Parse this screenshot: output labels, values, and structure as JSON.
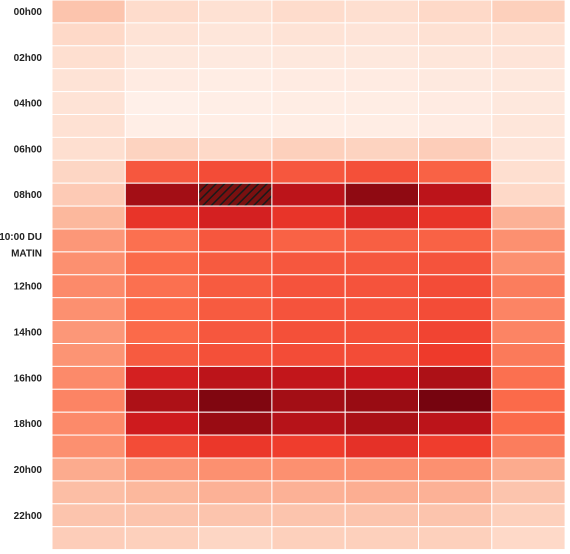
{
  "chart_data": {
    "type": "heatmap",
    "y_labels": [
      "00h00",
      "",
      "02h00",
      "",
      "04h00",
      "",
      "06h00",
      "",
      "08h00",
      "",
      "10:00 DU MATIN",
      "",
      "12h00",
      "",
      "14h00",
      "",
      "16h00",
      "",
      "18h00",
      "",
      "20h00",
      "",
      "22h00",
      ""
    ],
    "y_label_tenth_line1": "10:00 DU",
    "y_label_tenth_line2": "MATIN",
    "columns": 7,
    "color_scale": {
      "low": "#fff5f0",
      "high": "#67000d"
    },
    "value_range": [
      0,
      1
    ],
    "values": [
      [
        0.22,
        0.14,
        0.12,
        0.14,
        0.13,
        0.15,
        0.18
      ],
      [
        0.15,
        0.11,
        0.09,
        0.11,
        0.1,
        0.12,
        0.12
      ],
      [
        0.13,
        0.08,
        0.07,
        0.08,
        0.08,
        0.09,
        0.1
      ],
      [
        0.11,
        0.06,
        0.05,
        0.06,
        0.06,
        0.07,
        0.08
      ],
      [
        0.11,
        0.03,
        0.04,
        0.05,
        0.05,
        0.06,
        0.08
      ],
      [
        0.12,
        0.04,
        0.04,
        0.05,
        0.05,
        0.06,
        0.09
      ],
      [
        0.13,
        0.17,
        0.15,
        0.18,
        0.17,
        0.19,
        0.1
      ],
      [
        0.16,
        0.55,
        0.58,
        0.55,
        0.57,
        0.52,
        0.13
      ],
      [
        0.2,
        0.88,
        null,
        0.8,
        0.92,
        0.8,
        0.15
      ],
      [
        0.26,
        0.65,
        0.72,
        0.65,
        0.7,
        0.65,
        0.28
      ],
      [
        0.36,
        0.48,
        0.55,
        0.52,
        0.53,
        0.52,
        0.38
      ],
      [
        0.38,
        0.5,
        0.54,
        0.55,
        0.55,
        0.56,
        0.38
      ],
      [
        0.4,
        0.48,
        0.54,
        0.56,
        0.56,
        0.58,
        0.44
      ],
      [
        0.38,
        0.5,
        0.54,
        0.56,
        0.56,
        0.58,
        0.42
      ],
      [
        0.36,
        0.5,
        0.55,
        0.57,
        0.57,
        0.6,
        0.42
      ],
      [
        0.37,
        0.54,
        0.57,
        0.58,
        0.58,
        0.63,
        0.45
      ],
      [
        0.4,
        0.72,
        0.8,
        0.78,
        0.76,
        0.85,
        0.48
      ],
      [
        0.42,
        0.85,
        0.95,
        0.88,
        0.9,
        0.97,
        0.5
      ],
      [
        0.4,
        0.74,
        0.9,
        0.82,
        0.86,
        0.8,
        0.5
      ],
      [
        0.38,
        0.58,
        0.64,
        0.62,
        0.66,
        0.62,
        0.44
      ],
      [
        0.3,
        0.36,
        0.38,
        0.38,
        0.38,
        0.38,
        0.3
      ],
      [
        0.24,
        0.26,
        0.28,
        0.28,
        0.29,
        0.28,
        0.22
      ],
      [
        0.22,
        0.22,
        0.22,
        0.22,
        0.22,
        0.22,
        0.18
      ],
      [
        0.19,
        0.18,
        0.16,
        0.18,
        0.18,
        0.18,
        0.15
      ]
    ]
  }
}
